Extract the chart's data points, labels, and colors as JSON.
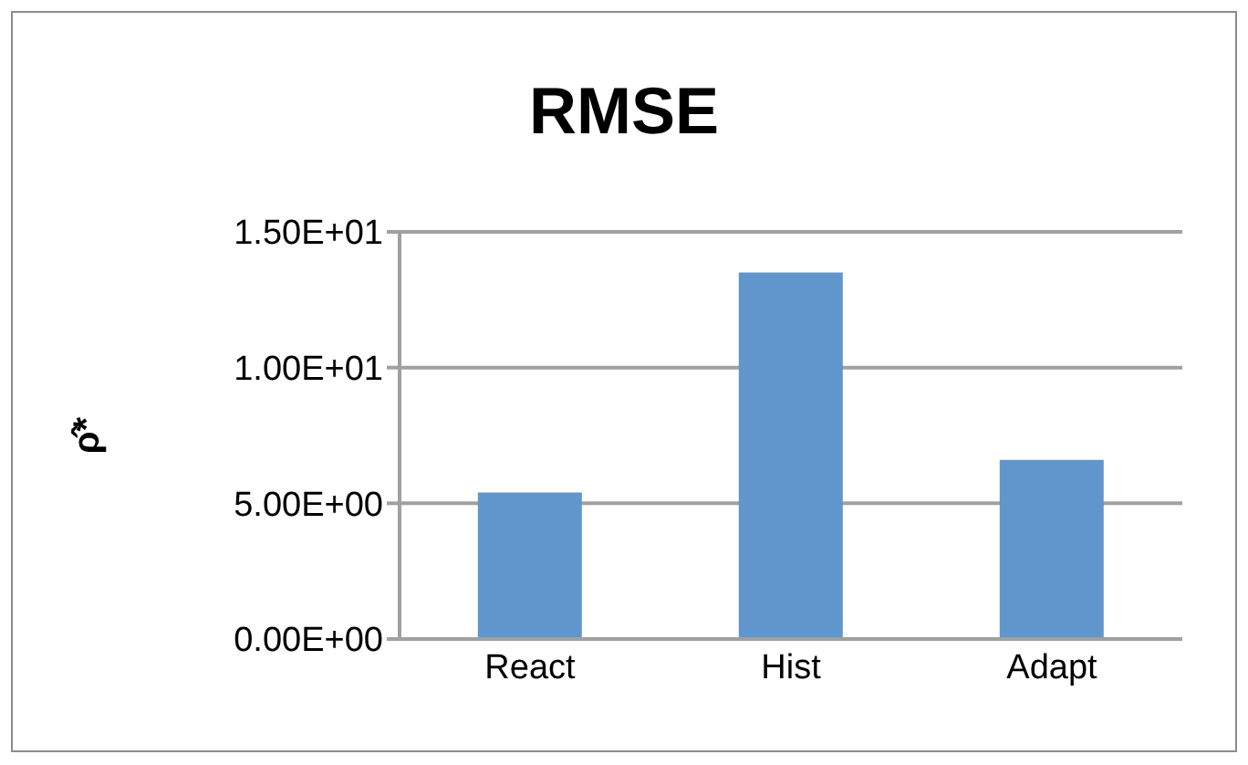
{
  "chart_data": {
    "type": "bar",
    "title": "RMSE",
    "ylabel": "ρ̂*",
    "categories": [
      "React",
      "Hist",
      "Adapt"
    ],
    "values": [
      5.4,
      13.5,
      6.6
    ],
    "color": "#6096cb",
    "ylim": [
      0,
      15
    ],
    "yticks": [
      {
        "value": 0,
        "label": "0.00E+00"
      },
      {
        "value": 5,
        "label": "5.00E+00"
      },
      {
        "value": 10,
        "label": "1.00E+01"
      },
      {
        "value": 15,
        "label": "1.50E+01"
      }
    ],
    "grid": "y",
    "legend": false
  }
}
